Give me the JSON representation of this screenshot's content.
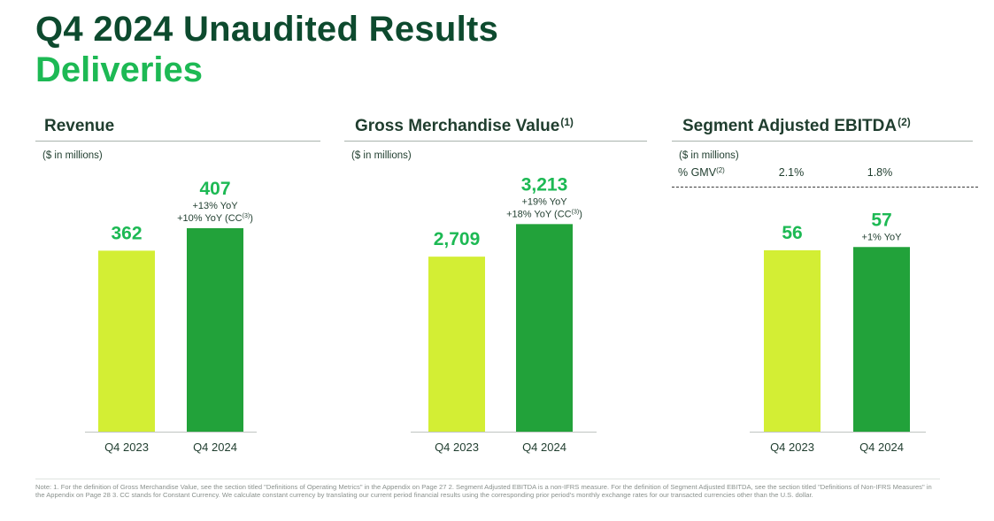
{
  "header": {
    "title": "Q4 2024 Unaudited Results",
    "subtitle": "Deliveries"
  },
  "colors": {
    "prior_year_bar": "#d3ee34",
    "current_year_bar": "#22a23a",
    "value_label": "#1db954",
    "title_green": "#0d4a2e"
  },
  "chart_data": [
    {
      "type": "bar",
      "title": "Revenue",
      "title_sup": "",
      "unit_note": "($ in millions)",
      "categories": [
        "Q4 2023",
        "Q4 2024"
      ],
      "values": [
        362,
        407
      ],
      "value_labels": [
        "362",
        "407"
      ],
      "growth_labels": [
        [],
        [
          "+13% YoY",
          "+10% YoY (CC"
        ]
      ],
      "growth_cc_sup": "(3)",
      "ylim": [
        0,
        460
      ]
    },
    {
      "type": "bar",
      "title": "Gross Merchandise Value",
      "title_sup": "(1)",
      "unit_note": "($ in millions)",
      "categories": [
        "Q4 2023",
        "Q4 2024"
      ],
      "values": [
        2709,
        3213
      ],
      "value_labels": [
        "2,709",
        "3,213"
      ],
      "growth_labels": [
        [],
        [
          "+19% YoY",
          "+18% YoY (CC"
        ]
      ],
      "growth_cc_sup": "(3)",
      "ylim": [
        0,
        3560
      ]
    },
    {
      "type": "bar",
      "title": "Segment Adjusted EBITDA",
      "title_sup": "(2)",
      "unit_note": "($ in millions)",
      "gmv_label": "% GMV",
      "gmv_sup": "(2)",
      "gmv_values": [
        "2.1%",
        "1.8%"
      ],
      "categories": [
        "Q4 2023",
        "Q4 2024"
      ],
      "values": [
        56,
        57
      ],
      "value_labels": [
        "56",
        "57"
      ],
      "growth_labels": [
        [],
        [
          "+1% YoY"
        ]
      ],
      "growth_cc_sup": "",
      "ylim": [
        0,
        71
      ]
    }
  ],
  "footnote": "Note: 1. For the definition of Gross Merchandise Value, see the section titled \"Definitions of Operating Metrics\" in the Appendix on Page 27 2. Segment Adjusted EBITDA is a non-IFRS measure. For the definition of Segment Adjusted EBITDA, see the section titled \"Definitions of Non-IFRS Measures\" in the Appendix on Page 28 3. CC stands for Constant Currency. We calculate constant currency by translating our current period financial results using the corresponding prior period's monthly exchange rates for our transacted currencies other than the U.S. dollar."
}
